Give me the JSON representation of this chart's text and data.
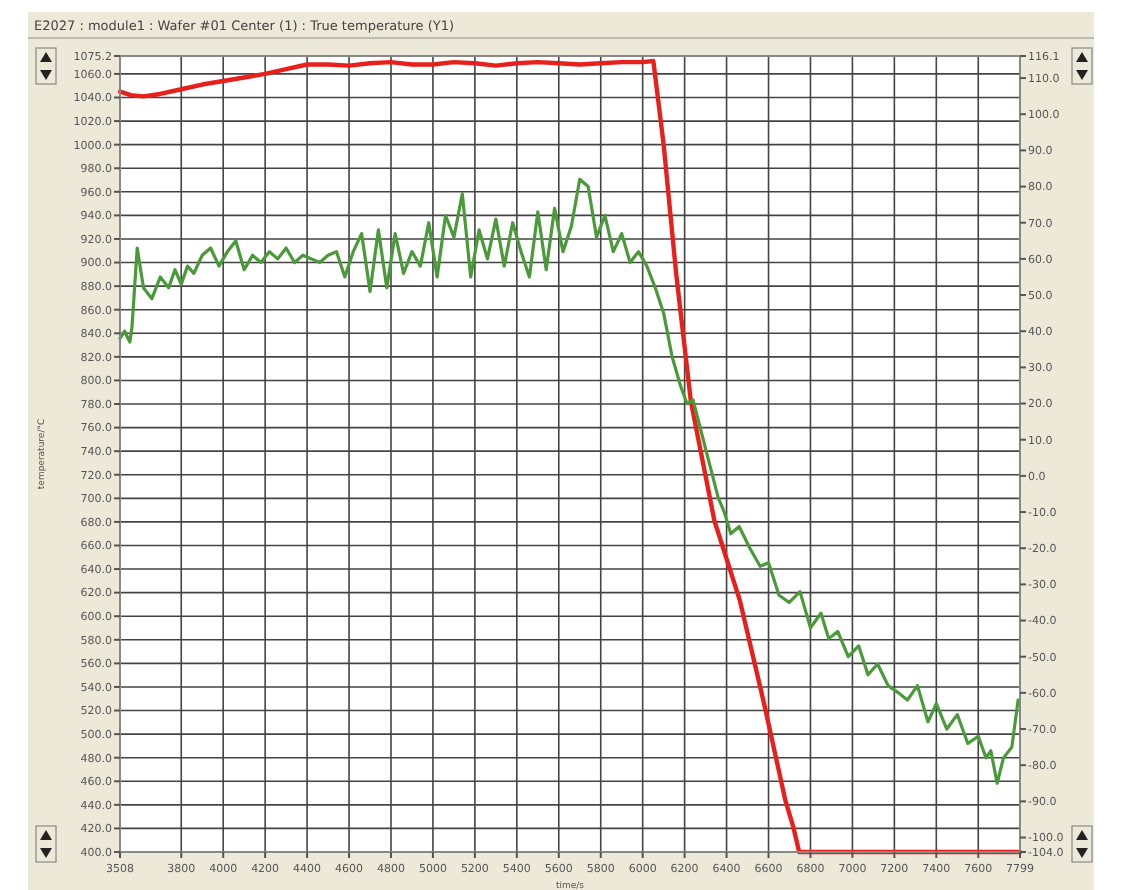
{
  "chart_data": {
    "type": "line",
    "title": "E2027 : module1 : Wafer #01 Center (1) : True temperature    (Y1)",
    "xlabel": "time/s",
    "ylabel": "temperature/°C",
    "xlim": [
      3508,
      7799
    ],
    "xticks": [
      3508,
      3800,
      4000,
      4200,
      4400,
      4600,
      4800,
      5000,
      5200,
      5400,
      5600,
      5800,
      6000,
      6200,
      6400,
      6600,
      6800,
      7000,
      7200,
      7400,
      7600,
      7799
    ],
    "ylim": [
      400,
      1075.2
    ],
    "yticks": [
      {
        "value": 400,
        "label": "400.0"
      },
      {
        "value": 420,
        "label": "420.0"
      },
      {
        "value": 440,
        "label": "440.0"
      },
      {
        "value": 460,
        "label": "460.0"
      },
      {
        "value": 480,
        "label": "480.0"
      },
      {
        "value": 500,
        "label": "500.0"
      },
      {
        "value": 520,
        "label": "520.0"
      },
      {
        "value": 540,
        "label": "540.0"
      },
      {
        "value": 560,
        "label": "560.0"
      },
      {
        "value": 580,
        "label": "580.0"
      },
      {
        "value": 600,
        "label": "600.0"
      },
      {
        "value": 620,
        "label": "620.0"
      },
      {
        "value": 640,
        "label": "640.0"
      },
      {
        "value": 660,
        "label": "660.0"
      },
      {
        "value": 680,
        "label": "680.0"
      },
      {
        "value": 700,
        "label": "700.0"
      },
      {
        "value": 720,
        "label": "720.0"
      },
      {
        "value": 740,
        "label": "740.0"
      },
      {
        "value": 760,
        "label": "760.0"
      },
      {
        "value": 780,
        "label": "780.0"
      },
      {
        "value": 800,
        "label": "800.0"
      },
      {
        "value": 820,
        "label": "820.0"
      },
      {
        "value": 840,
        "label": "840.0"
      },
      {
        "value": 860,
        "label": "860.0"
      },
      {
        "value": 880,
        "label": "880.0"
      },
      {
        "value": 900,
        "label": "900.0"
      },
      {
        "value": 920,
        "label": "920.0"
      },
      {
        "value": 940,
        "label": "940.0"
      },
      {
        "value": 960,
        "label": "960.0"
      },
      {
        "value": 980,
        "label": "980.0"
      },
      {
        "value": 1000,
        "label": "1000.0"
      },
      {
        "value": 1020,
        "label": "1020.0"
      },
      {
        "value": 1040,
        "label": "1040.0"
      },
      {
        "value": 1060,
        "label": "1060.0"
      },
      {
        "value": 1075.2,
        "label": "1075.2"
      }
    ],
    "y2lim": [
      -104,
      116.1
    ],
    "y2ticks": [
      {
        "value": -104,
        "label": "-104.0"
      },
      {
        "value": -100,
        "label": "-100.0"
      },
      {
        "value": -90,
        "label": "-90.0"
      },
      {
        "value": -80,
        "label": "-80.0"
      },
      {
        "value": -70,
        "label": "-70.0"
      },
      {
        "value": -60,
        "label": "-60.0"
      },
      {
        "value": -50,
        "label": "-50.0"
      },
      {
        "value": -40,
        "label": "-40.0"
      },
      {
        "value": -30,
        "label": "-30.0"
      },
      {
        "value": -20,
        "label": "-20.0"
      },
      {
        "value": -10,
        "label": "-10.0"
      },
      {
        "value": 0,
        "label": "0.0"
      },
      {
        "value": 10,
        "label": "10.0"
      },
      {
        "value": 20,
        "label": "20.0"
      },
      {
        "value": 30,
        "label": "30.0"
      },
      {
        "value": 40,
        "label": "40.0"
      },
      {
        "value": 50,
        "label": "50.0"
      },
      {
        "value": 60,
        "label": "60.0"
      },
      {
        "value": 70,
        "label": "70.0"
      },
      {
        "value": 80,
        "label": "80.0"
      },
      {
        "value": 90,
        "label": "90.0"
      },
      {
        "value": 100,
        "label": "100.0"
      },
      {
        "value": 110,
        "label": "110.0"
      },
      {
        "value": 116.1,
        "label": "116.1"
      }
    ],
    "grid": true,
    "marker": "none",
    "line_style": "solid",
    "series": [
      {
        "color": "#e8201c",
        "x": [
          3508,
          3560,
          3620,
          3700,
          3800,
          3900,
          4000,
          4100,
          4200,
          4300,
          4400,
          4500,
          4600,
          4700,
          4800,
          4900,
          5000,
          5100,
          5200,
          5300,
          5400,
          5500,
          5600,
          5700,
          5800,
          5900,
          6000,
          6051,
          6100,
          6160,
          6230,
          6342,
          6464,
          6580,
          6680,
          6720,
          6746,
          6800,
          7000,
          7400,
          7799
        ],
        "values": [
          1045,
          1042,
          1041,
          1043,
          1047,
          1051,
          1054,
          1057,
          1060,
          1064,
          1068,
          1068,
          1067,
          1069,
          1070,
          1068,
          1068,
          1070,
          1069,
          1067,
          1069,
          1070,
          1069,
          1068,
          1069,
          1070,
          1070,
          1071,
          1000,
          890,
          782,
          681,
          613,
          525,
          444,
          420,
          400,
          400,
          400,
          400,
          400
        ]
      },
      {
        "color": "#4a9a3a",
        "axis": "y2",
        "x": [
          3508,
          3530,
          3555,
          3565,
          3590,
          3620,
          3660,
          3700,
          3740,
          3770,
          3800,
          3830,
          3860,
          3900,
          3940,
          3980,
          4020,
          4060,
          4100,
          4140,
          4180,
          4220,
          4260,
          4300,
          4340,
          4380,
          4420,
          4460,
          4500,
          4540,
          4580,
          4620,
          4660,
          4700,
          4740,
          4780,
          4820,
          4860,
          4900,
          4940,
          4980,
          5020,
          5060,
          5100,
          5140,
          5180,
          5220,
          5260,
          5300,
          5340,
          5380,
          5420,
          5460,
          5500,
          5540,
          5580,
          5620,
          5660,
          5700,
          5740,
          5780,
          5820,
          5860,
          5900,
          5940,
          5980,
          6020,
          6060,
          6100,
          6140,
          6180,
          6211,
          6240,
          6280,
          6320,
          6360,
          6389,
          6420,
          6460,
          6511,
          6560,
          6600,
          6650,
          6699,
          6750,
          6800,
          6850,
          6887,
          6930,
          6980,
          7030,
          7074,
          7120,
          7170,
          7220,
          7262,
          7310,
          7360,
          7400,
          7450,
          7500,
          7550,
          7600,
          7637,
          7660,
          7690,
          7720,
          7760,
          7790
        ],
        "values": [
          38,
          40,
          37,
          41,
          63,
          52,
          49,
          55,
          52,
          57,
          53,
          58,
          56,
          61,
          63,
          58,
          62,
          65,
          57,
          61,
          59,
          62,
          60,
          63,
          59,
          61,
          60,
          59,
          61,
          62,
          55,
          62,
          67,
          51,
          68,
          52,
          67,
          56,
          62,
          58,
          70,
          55,
          72,
          66,
          78,
          55,
          68,
          60,
          71,
          58,
          70,
          62,
          55,
          73,
          57,
          74,
          62,
          69,
          82,
          80,
          66,
          72,
          62,
          67,
          59,
          62,
          58,
          52,
          45,
          33,
          25,
          20,
          21,
          12,
          3,
          -6,
          -10,
          -16,
          -14,
          -20,
          -25,
          -24,
          -33,
          -35,
          -32,
          -42,
          -38,
          -45,
          -43,
          -50,
          -47,
          -55,
          -52,
          -58,
          -60,
          -62,
          -58,
          -68,
          -63,
          -70,
          -66,
          -74,
          -72,
          -78,
          -76,
          -85,
          -78,
          -75,
          -62
        ]
      }
    ]
  }
}
